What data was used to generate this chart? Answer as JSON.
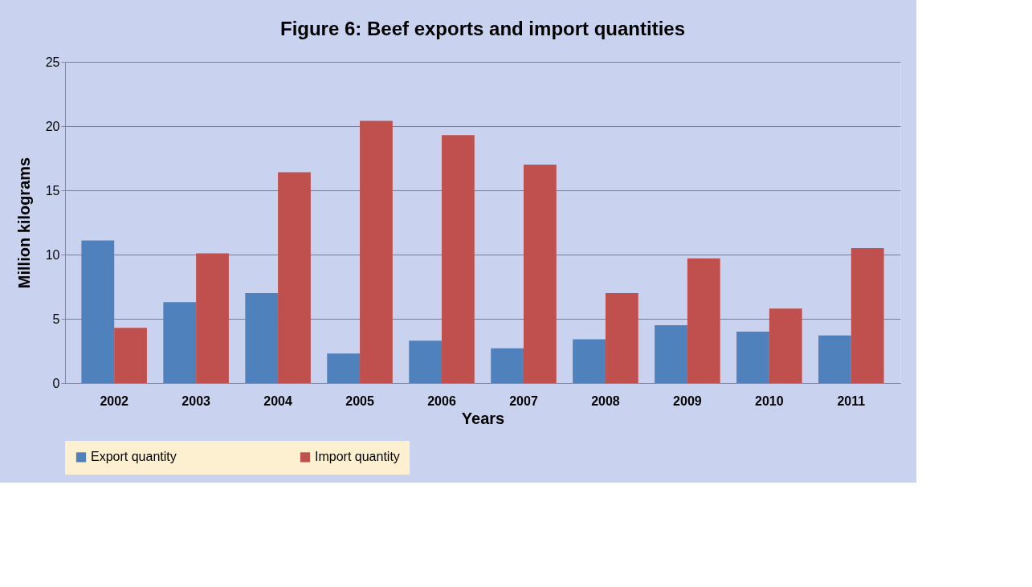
{
  "chart_data": {
    "type": "bar",
    "title": "Figure 6: Beef exports and import quantities",
    "xlabel": "Years",
    "ylabel": "Million kilograms",
    "categories": [
      "2002",
      "2003",
      "2004",
      "2005",
      "2006",
      "2007",
      "2008",
      "2009",
      "2010",
      "2011"
    ],
    "series": [
      {
        "name": "Export quantity",
        "color": "#4f81bd",
        "values": [
          11.1,
          6.3,
          7.0,
          2.3,
          3.3,
          2.7,
          3.4,
          4.5,
          4.0,
          3.7
        ]
      },
      {
        "name": "Import quantity",
        "color": "#c0504d",
        "values": [
          4.3,
          10.1,
          16.4,
          20.4,
          19.3,
          17.0,
          7.0,
          9.7,
          5.8,
          10.5
        ]
      }
    ],
    "ylim": [
      0,
      25
    ],
    "yticks": [
      0,
      5,
      10,
      15,
      20,
      25
    ],
    "grid": "y",
    "legend": "bottom"
  }
}
